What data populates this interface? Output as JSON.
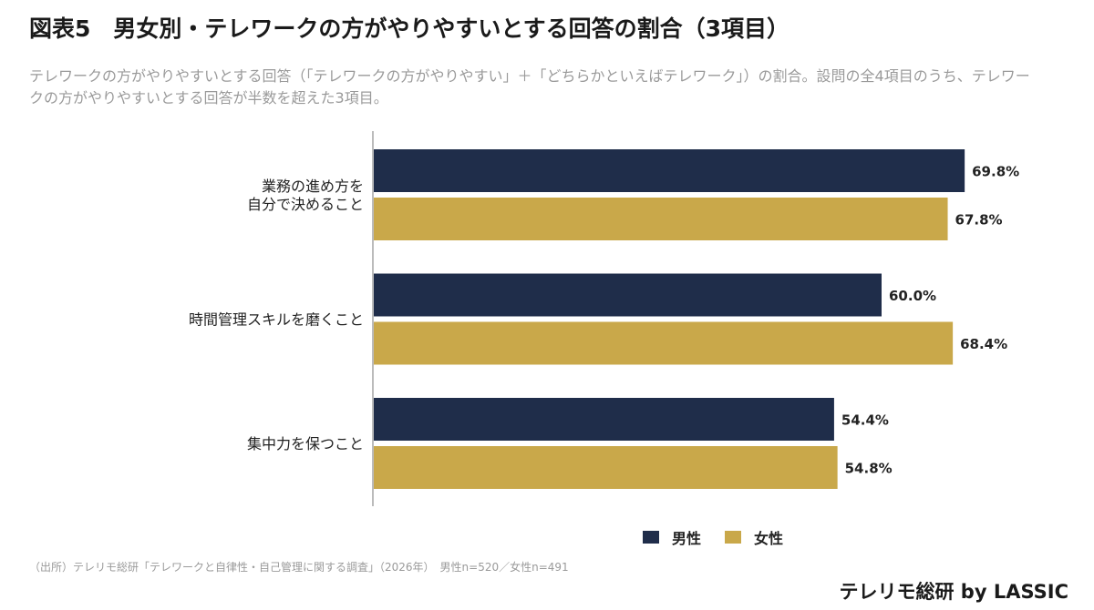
{
  "title": "図表5　男女別・テレワークの方がやりやすいとする回答の割合（3項目）",
  "subtitle": "テレワークの方がやりやすいとする回答（「テレワークの方がやりやすい」＋「どちらかといえばテレワーク」）の割合。設問の全4項目のうち、テレワークの方がやりやすいとする回答が半数を超えた3項目。",
  "source": "（出所）テレリモ総研「テレワークと自律性・自己管理に関する調査」（2026年）　男性n=520／女性n=491",
  "brand": "テレリモ総研 by LASSIC",
  "colors": {
    "male": "#1f2d4a",
    "female": "#c9a84a",
    "axis": "#bbbbbb"
  },
  "chart_data": {
    "type": "bar",
    "orientation": "horizontal",
    "categories": [
      [
        "業務の進め方を",
        "自分で決めること"
      ],
      [
        "時間管理スキルを磨くこと"
      ],
      [
        "集中力を保つこと"
      ]
    ],
    "series": [
      {
        "name": "男性",
        "values": [
          69.8,
          60.0,
          54.4
        ],
        "labels": [
          "69.8%",
          "60.0%",
          "54.4%"
        ]
      },
      {
        "name": "女性",
        "values": [
          67.8,
          68.4,
          54.8
        ],
        "labels": [
          "67.8%",
          "68.4%",
          "54.8%"
        ]
      }
    ],
    "xlim": [
      0,
      100
    ],
    "legend_position": "bottom-right",
    "grid": false
  }
}
